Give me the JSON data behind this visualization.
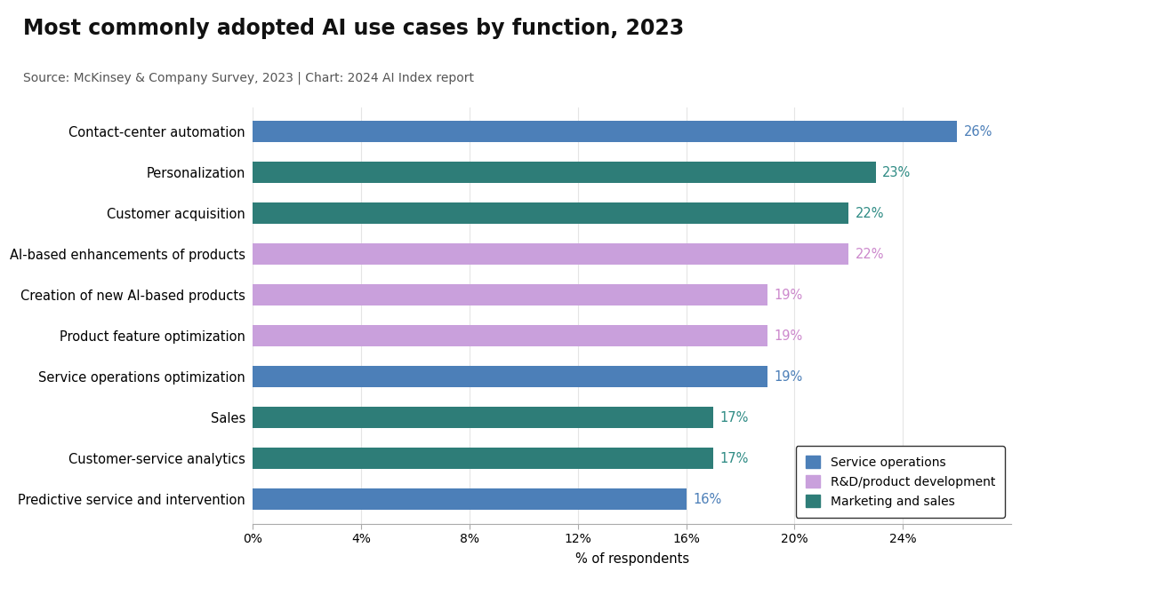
{
  "title": "Most commonly adopted AI use cases by function, 2023",
  "subtitle": "Source: McKinsey & Company Survey, 2023 | Chart: 2024 AI Index report",
  "xlabel": "% of respondents",
  "categories": [
    "Contact-center automation",
    "Personalization",
    "Customer acquisition",
    "AI-based enhancements of products",
    "Creation of new AI-based products",
    "Product feature optimization",
    "Service operations optimization",
    "Sales",
    "Customer-service analytics",
    "Predictive service and intervention"
  ],
  "values": [
    26,
    23,
    22,
    22,
    19,
    19,
    19,
    17,
    17,
    16
  ],
  "colors": [
    "#4C7FB8",
    "#2E7D78",
    "#2E7D78",
    "#C9A0DC",
    "#C9A0DC",
    "#C9A0DC",
    "#4C7FB8",
    "#2E7D78",
    "#2E7D78",
    "#4C7FB8"
  ],
  "label_colors": [
    "#4C7FB8",
    "#2E8B84",
    "#2E8B84",
    "#CC88CC",
    "#CC88CC",
    "#CC88CC",
    "#4C7FB8",
    "#2E8B84",
    "#2E8B84",
    "#4C7FB8"
  ],
  "xlim": [
    0,
    28
  ],
  "xticks": [
    0,
    4,
    8,
    12,
    16,
    20,
    24
  ],
  "xtick_labels": [
    "0%",
    "4%",
    "8%",
    "12%",
    "16%",
    "20%",
    "24%"
  ],
  "legend": [
    {
      "label": "Service operations",
      "color": "#4C7FB8"
    },
    {
      "label": "R&D/product development",
      "color": "#C9A0DC"
    },
    {
      "label": "Marketing and sales",
      "color": "#2E7D78"
    }
  ],
  "background_color": "#FFFFFF",
  "title_fontsize": 17,
  "subtitle_fontsize": 10,
  "bar_height": 0.52,
  "grid_color": "#E5E5E5"
}
